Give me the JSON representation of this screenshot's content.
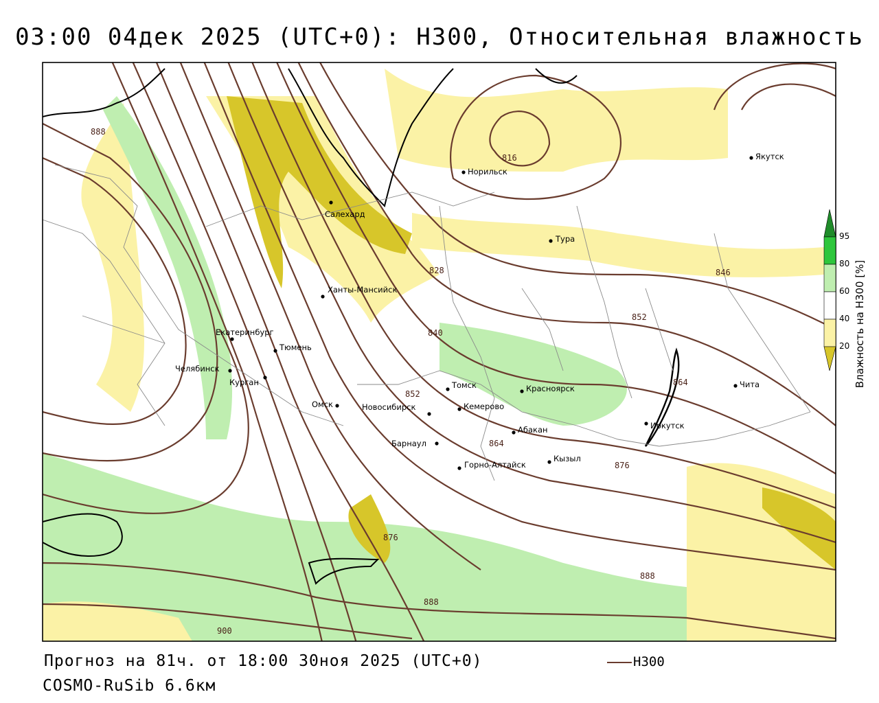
{
  "title": "03:00 04дек 2025 (UTC+0): H300, Относительная влажность",
  "footer": {
    "forecast": "Прогноз на 81ч. от 18:00 30ноя 2025 (UTC+0)",
    "model": "COSMO-RuSib 6.6км"
  },
  "legend": {
    "label": "H300",
    "line_color": "#6a3c2e"
  },
  "colorbar": {
    "title": "Влажность на H300 [%]",
    "ticks": [
      "95",
      "80",
      "60",
      "40",
      "20"
    ],
    "colors": {
      "above_95": "#1f8c2a",
      "80_95": "#2ec63c",
      "60_80": "#bfeeb0",
      "40_60": "#ffffff",
      "20_40": "#fbf2a6",
      "below_20": "#d7c62a"
    }
  },
  "cities": [
    {
      "name": "Норильск"
    },
    {
      "name": "Якутск"
    },
    {
      "name": "Салехард"
    },
    {
      "name": "Тура"
    },
    {
      "name": "Ханты-Мансийск"
    },
    {
      "name": "Екатеринбург"
    },
    {
      "name": "Тюмень"
    },
    {
      "name": "Челябинск"
    },
    {
      "name": "Курган"
    },
    {
      "name": "Омск"
    },
    {
      "name": "Томск"
    },
    {
      "name": "Новосибирск"
    },
    {
      "name": "Кемерово"
    },
    {
      "name": "Красноярск"
    },
    {
      "name": "Абакан"
    },
    {
      "name": "Барнаул"
    },
    {
      "name": "Горно-Алтайск"
    },
    {
      "name": "Кызыл"
    },
    {
      "name": "Иркутск"
    },
    {
      "name": "Чита"
    }
  ],
  "contour_labels": [
    "888",
    "816",
    "828",
    "840",
    "846",
    "852",
    "852",
    "864",
    "864",
    "876",
    "876",
    "888",
    "888",
    "900"
  ]
}
